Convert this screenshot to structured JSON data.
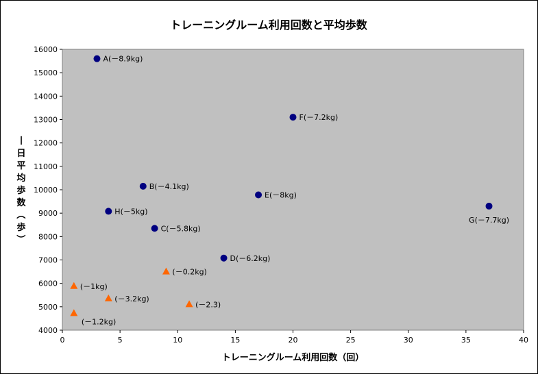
{
  "chart_data": {
    "type": "scatter",
    "title": "トレーニングルーム利用回数と平均歩数",
    "xlabel": "トレーニングルーム利用回数（回）",
    "ylabel": "一日平均歩数（歩）",
    "xlim": [
      0,
      40
    ],
    "ylim": [
      4000,
      16000
    ],
    "x_ticks": [
      0,
      5,
      10,
      15,
      20,
      25,
      30,
      35,
      40
    ],
    "y_ticks": [
      4000,
      5000,
      6000,
      7000,
      8000,
      9000,
      10000,
      11000,
      12000,
      13000,
      14000,
      15000,
      16000
    ],
    "grid": false,
    "plot_background": "#c0c0c0",
    "series": [
      {
        "marker": "circle",
        "color": "#000080",
        "points": [
          {
            "x": 3,
            "y": 15600,
            "label": "A(－8.9kg)",
            "label_pos": "right"
          },
          {
            "x": 20,
            "y": 13100,
            "label": "F(－7.2kg)",
            "label_pos": "right"
          },
          {
            "x": 7,
            "y": 10150,
            "label": "B(－4.1kg)",
            "label_pos": "right"
          },
          {
            "x": 17,
            "y": 9780,
            "label": "E(－8kg)",
            "label_pos": "right"
          },
          {
            "x": 37,
            "y": 9300,
            "label": "G(－7.7kg)",
            "label_pos": "below"
          },
          {
            "x": 4,
            "y": 9080,
            "label": "H(－5kg)",
            "label_pos": "right"
          },
          {
            "x": 8,
            "y": 8350,
            "label": "C(－5.8kg)",
            "label_pos": "right"
          },
          {
            "x": 14,
            "y": 7080,
            "label": "D(－6.2kg)",
            "label_pos": "right"
          }
        ]
      },
      {
        "marker": "triangle",
        "color": "#ff6600",
        "points": [
          {
            "x": 9,
            "y": 6500,
            "label": "(－0.2kg)",
            "label_pos": "right"
          },
          {
            "x": 1,
            "y": 5880,
            "label": "(－1kg)",
            "label_pos": "right"
          },
          {
            "x": 4,
            "y": 5350,
            "label": "(－3.2kg)",
            "label_pos": "right"
          },
          {
            "x": 11,
            "y": 5100,
            "label": "(－2.3)",
            "label_pos": "right"
          },
          {
            "x": 1,
            "y": 4720,
            "label": "(－1.2kg)",
            "label_pos": "below-right"
          }
        ]
      }
    ]
  }
}
